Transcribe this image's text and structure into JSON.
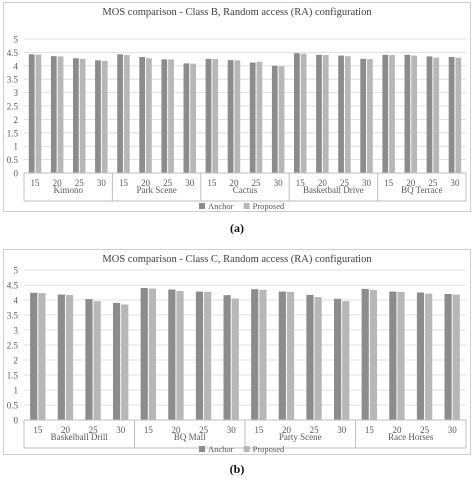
{
  "captions": [
    "(a)",
    "(b)"
  ],
  "colors": {
    "anchor": "#8c8c8c",
    "proposed": "#b7b7b7",
    "grid": "#d9d9d9",
    "axis": "#bfbfbf",
    "text": "#595959"
  },
  "chart_data": [
    {
      "type": "bar",
      "title": "MOS comparison - Class B, Random access (RA) configuration",
      "xlabel": "",
      "ylabel": "",
      "ylim": [
        0,
        5
      ],
      "yticks": [
        "0",
        "0.5",
        "1",
        "1.5",
        "2",
        "2.5",
        "3",
        "3.5",
        "4",
        "4.5",
        "5"
      ],
      "grid": true,
      "legend_position": "bottom",
      "groups": [
        "Kimono",
        "Park Scene",
        "Cactus",
        "Basketball Drive",
        "BQ Terrace"
      ],
      "categories": [
        "15",
        "20",
        "25",
        "30",
        "15",
        "20",
        "25",
        "30",
        "15",
        "20",
        "25",
        "30",
        "15",
        "20",
        "25",
        "30",
        "15",
        "20",
        "25",
        "30"
      ],
      "series": [
        {
          "name": "Anchor",
          "values": [
            4.43,
            4.36,
            4.28,
            4.2,
            4.43,
            4.33,
            4.24,
            4.09,
            4.26,
            4.21,
            4.12,
            4.0,
            4.47,
            4.41,
            4.38,
            4.26,
            4.41,
            4.41,
            4.35,
            4.33
          ]
        },
        {
          "name": "Proposed",
          "values": [
            4.42,
            4.35,
            4.26,
            4.18,
            4.4,
            4.28,
            4.24,
            4.08,
            4.25,
            4.2,
            4.15,
            3.98,
            4.45,
            4.4,
            4.36,
            4.25,
            4.4,
            4.38,
            4.3,
            4.3
          ]
        }
      ]
    },
    {
      "type": "bar",
      "title": "MOS comparison - Class C, Random access (RA) configuration",
      "xlabel": "",
      "ylabel": "",
      "ylim": [
        0,
        5
      ],
      "yticks": [
        "0",
        "0.5",
        "1",
        "1.5",
        "2",
        "2.5",
        "3",
        "3.5",
        "4",
        "4.5",
        "5"
      ],
      "grid": true,
      "legend_position": "bottom",
      "groups": [
        "Baskelball Drill",
        "BQ Mall",
        "Party Scene",
        "Race Horses"
      ],
      "categories": [
        "15",
        "20",
        "25",
        "30",
        "15",
        "20",
        "25",
        "30",
        "15",
        "20",
        "25",
        "30",
        "15",
        "20",
        "25",
        "30"
      ],
      "series": [
        {
          "name": "Anchor",
          "values": [
            4.24,
            4.18,
            4.03,
            3.9,
            4.4,
            4.35,
            4.28,
            4.16,
            4.36,
            4.28,
            4.17,
            4.04,
            4.37,
            4.28,
            4.25,
            4.2
          ]
        },
        {
          "name": "Proposed",
          "values": [
            4.23,
            4.17,
            3.96,
            3.85,
            4.38,
            4.3,
            4.27,
            4.05,
            4.34,
            4.27,
            4.1,
            3.96,
            4.34,
            4.27,
            4.21,
            4.18
          ]
        }
      ]
    }
  ]
}
